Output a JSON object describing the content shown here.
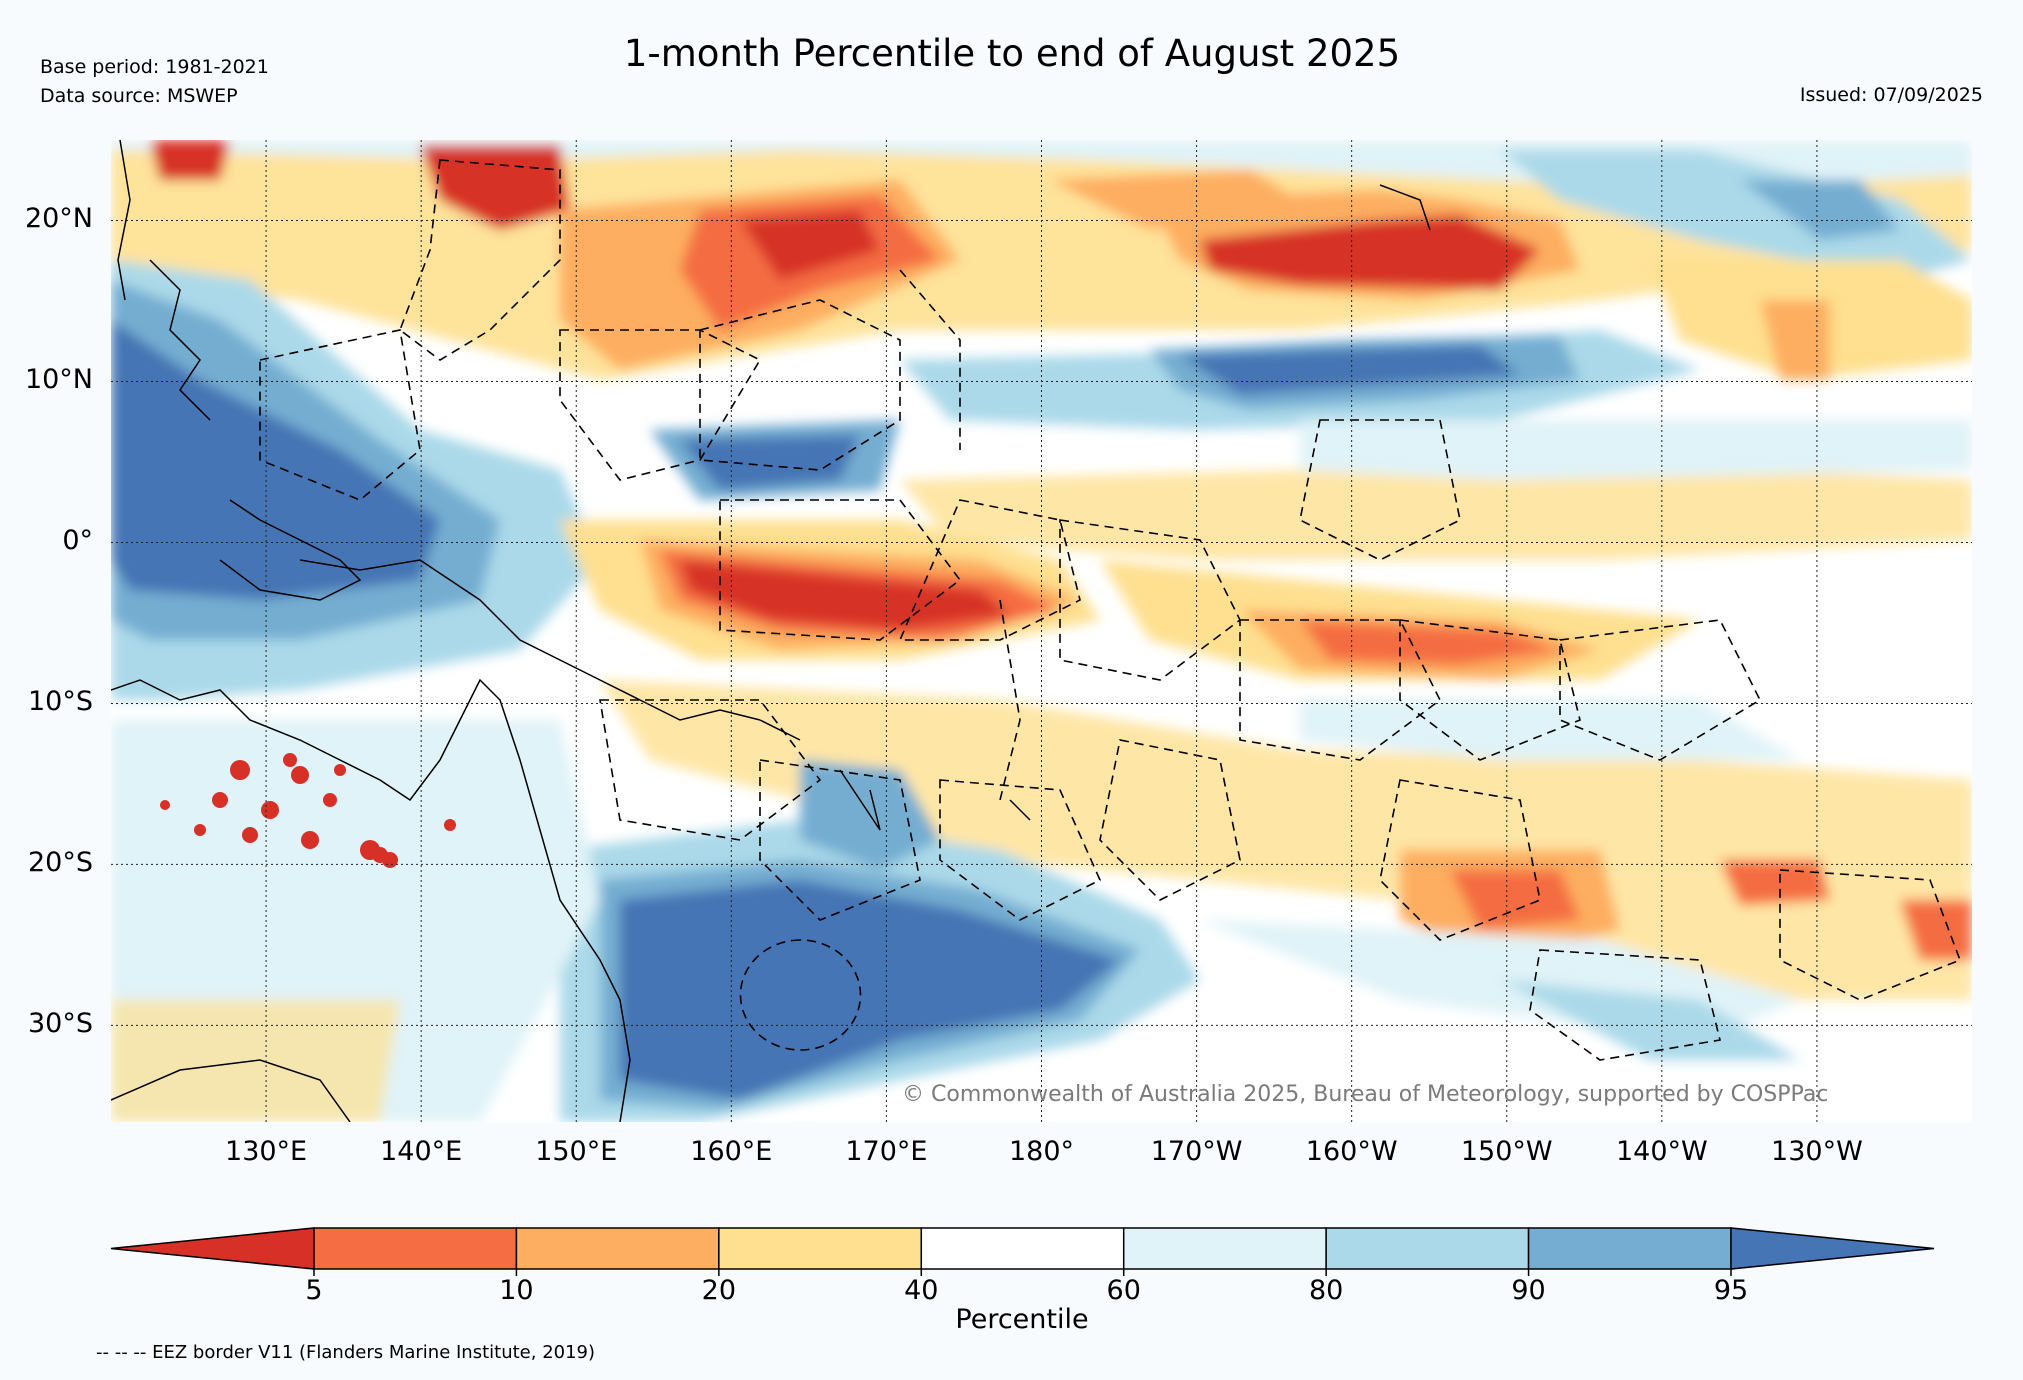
{
  "header": {
    "title": "1-month Percentile to end of August 2025",
    "base_period": "Base period: 1981-2021",
    "data_source": "Data source: MSWEP",
    "issued": "Issued: 07/09/2025"
  },
  "map": {
    "lon_labels": [
      "130°E",
      "140°E",
      "150°E",
      "160°E",
      "170°E",
      "180°",
      "170°W",
      "160°W",
      "150°W",
      "140°W",
      "130°W"
    ],
    "lon_values": [
      130,
      140,
      150,
      160,
      170,
      180,
      190,
      200,
      210,
      220,
      230
    ],
    "lat_labels": [
      "20°N",
      "10°N",
      "0°",
      "10°S",
      "20°S",
      "30°S"
    ],
    "lat_values": [
      20,
      10,
      0,
      -10,
      -20,
      -30
    ],
    "lon_range": [
      120,
      240
    ],
    "lat_range": [
      -36,
      25
    ],
    "copyright": "© Commonwealth of Australia 2025, Bureau of Meteorology, supported by COSPPac"
  },
  "colorbar": {
    "label": "Percentile",
    "ticks": [
      "5",
      "10",
      "20",
      "40",
      "60",
      "80",
      "90",
      "95"
    ],
    "colors": [
      "#d73027",
      "#f46d43",
      "#fdae61",
      "#fee090",
      "#ffffff",
      "#e0f3f8",
      "#abd9e9",
      "#74add1",
      "#4575b4"
    ]
  },
  "footer": {
    "eez_note": "-- -- -- EEZ border V11 (Flanders Marine Institute, 2019)"
  }
}
